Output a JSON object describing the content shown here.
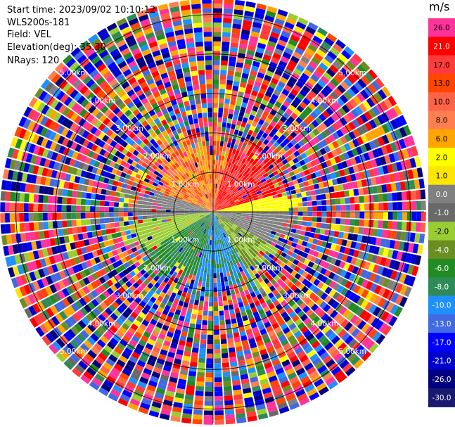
{
  "header": {
    "start_time": "Start time: 2023/09/02 10:10:12",
    "instrument": "WLS200s-181",
    "field": "Field: VEL",
    "elevation": "Elevation(deg): 35.30",
    "nrays": "NRays: 120"
  },
  "colorbar": {
    "unit": "m/s",
    "ticks": [
      "26.0",
      "21.0",
      "17.0",
      "13.0",
      "10.0",
      "8.0",
      "6.0",
      "2.0",
      "1.0",
      "0.0",
      "-1.0",
      "-2.0",
      "-4.0",
      "-6.0",
      "-8.0",
      "-10.0",
      "-13.0",
      "-17.0",
      "-21.0",
      "-26.0",
      "-30.0"
    ],
    "colors": [
      "#ff3399",
      "#ff0000",
      "#ff3b3b",
      "#ff4500",
      "#ff6347",
      "#ff7f50",
      "#ffa500",
      "#ffff00",
      "#ffe600",
      "#808080",
      "#696969",
      "#9acd32",
      "#6b8e23",
      "#228b22",
      "#2e8b57",
      "#1e90ff",
      "#4169e1",
      "#0000ff",
      "#0000cd",
      "#000080",
      "#191970"
    ]
  },
  "chart_data": {
    "type": "ppi",
    "title": "",
    "range_rings_km": [
      1.0,
      2.0,
      3.0,
      4.0,
      5.0
    ],
    "ring_labels": [
      "1.00km",
      "2.00km",
      "3.00km",
      "4.00km",
      "5.00km"
    ],
    "nrays": 120,
    "elevation_deg": 35.3,
    "value_range": [
      -30,
      26
    ],
    "clean_echo_max_km": 2.0,
    "sectors": [
      {
        "azimuth_deg": [
          15,
          75
        ],
        "velocity_ms": [
          13,
          21
        ],
        "description_color": "orange-red"
      },
      {
        "azimuth_deg": [
          75,
          90
        ],
        "velocity_ms": [
          1,
          2
        ]
      },
      {
        "azimuth_deg": [
          90,
          120
        ],
        "velocity_ms": [
          -1,
          0
        ]
      },
      {
        "azimuth_deg": [
          120,
          150
        ],
        "velocity_ms": [
          -6,
          -2
        ]
      },
      {
        "azimuth_deg": [
          150,
          195
        ],
        "velocity_ms": [
          -13,
          -8
        ]
      },
      {
        "azimuth_deg": [
          195,
          240
        ],
        "velocity_ms": [
          -10,
          -6
        ]
      },
      {
        "azimuth_deg": [
          240,
          265
        ],
        "velocity_ms": [
          -4,
          -2
        ]
      },
      {
        "azimuth_deg": [
          265,
          290
        ],
        "velocity_ms": [
          -1,
          0
        ]
      },
      {
        "azimuth_deg": [
          290,
          345
        ],
        "velocity_ms": [
          2,
          13
        ]
      }
    ]
  }
}
